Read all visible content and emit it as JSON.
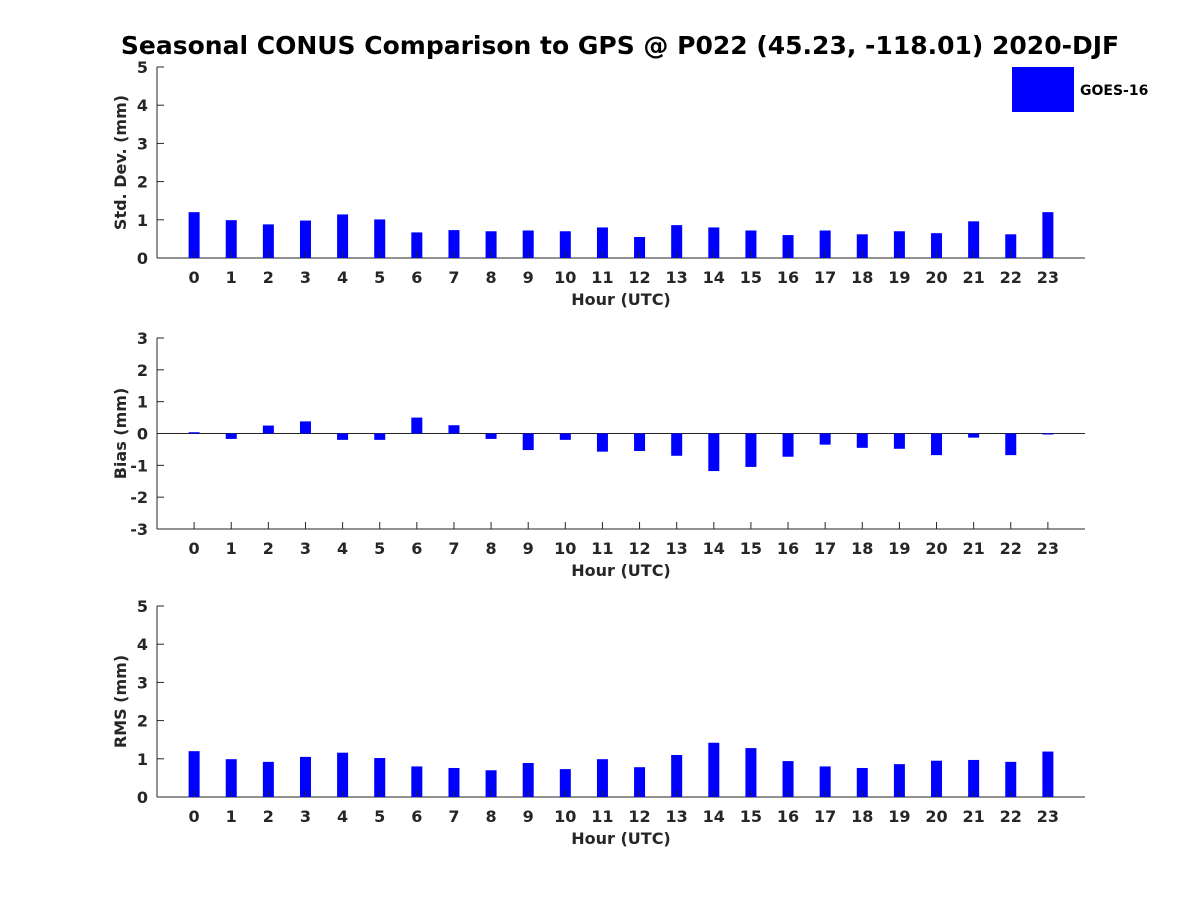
{
  "chart_data": {
    "title": "Seasonal CONUS Comparison to GPS @ P022 (45.23, -118.01) 2020-DJF",
    "legend": {
      "label": "GOES-16",
      "color": "#0000ff",
      "placement": "top-right"
    },
    "panels": [
      {
        "type": "bar",
        "ylabel": "Std. Dev. (mm)",
        "xlabel": "Hour (UTC)",
        "ylim": [
          0,
          5
        ],
        "yticks": [
          0,
          1,
          2,
          3,
          4,
          5
        ],
        "categories": [
          "0",
          "1",
          "2",
          "3",
          "4",
          "5",
          "6",
          "7",
          "8",
          "9",
          "10",
          "11",
          "12",
          "13",
          "14",
          "15",
          "16",
          "17",
          "18",
          "19",
          "20",
          "21",
          "22",
          "23"
        ],
        "values": [
          1.2,
          0.99,
          0.88,
          0.98,
          1.14,
          1.01,
          0.67,
          0.73,
          0.7,
          0.72,
          0.7,
          0.8,
          0.55,
          0.86,
          0.8,
          0.72,
          0.6,
          0.72,
          0.62,
          0.7,
          0.65,
          0.96,
          0.62,
          1.2
        ]
      },
      {
        "type": "bar",
        "ylabel": "Bias (mm)",
        "xlabel": "Hour (UTC)",
        "ylim": [
          -3,
          3
        ],
        "yticks": [
          -3,
          -2,
          -1,
          0,
          1,
          2,
          3
        ],
        "categories": [
          "0",
          "1",
          "2",
          "3",
          "4",
          "5",
          "6",
          "7",
          "8",
          "9",
          "10",
          "11",
          "12",
          "13",
          "14",
          "15",
          "16",
          "17",
          "18",
          "19",
          "20",
          "21",
          "22",
          "23"
        ],
        "values": [
          0.04,
          -0.17,
          0.25,
          0.38,
          -0.2,
          -0.2,
          0.5,
          0.26,
          -0.17,
          -0.52,
          -0.2,
          -0.57,
          -0.55,
          -0.7,
          -1.18,
          -1.05,
          -0.73,
          -0.35,
          -0.45,
          -0.48,
          -0.68,
          -0.13,
          -0.68,
          -0.03
        ]
      },
      {
        "type": "bar",
        "ylabel": "RMS (mm)",
        "xlabel": "Hour (UTC)",
        "ylim": [
          0,
          5
        ],
        "yticks": [
          0,
          1,
          2,
          3,
          4,
          5
        ],
        "categories": [
          "0",
          "1",
          "2",
          "3",
          "4",
          "5",
          "6",
          "7",
          "8",
          "9",
          "10",
          "11",
          "12",
          "13",
          "14",
          "15",
          "16",
          "17",
          "18",
          "19",
          "20",
          "21",
          "22",
          "23"
        ],
        "values": [
          1.2,
          0.99,
          0.92,
          1.05,
          1.16,
          1.02,
          0.8,
          0.76,
          0.7,
          0.89,
          0.73,
          0.99,
          0.78,
          1.1,
          1.42,
          1.28,
          0.94,
          0.8,
          0.76,
          0.86,
          0.95,
          0.97,
          0.92,
          1.19
        ]
      }
    ]
  }
}
